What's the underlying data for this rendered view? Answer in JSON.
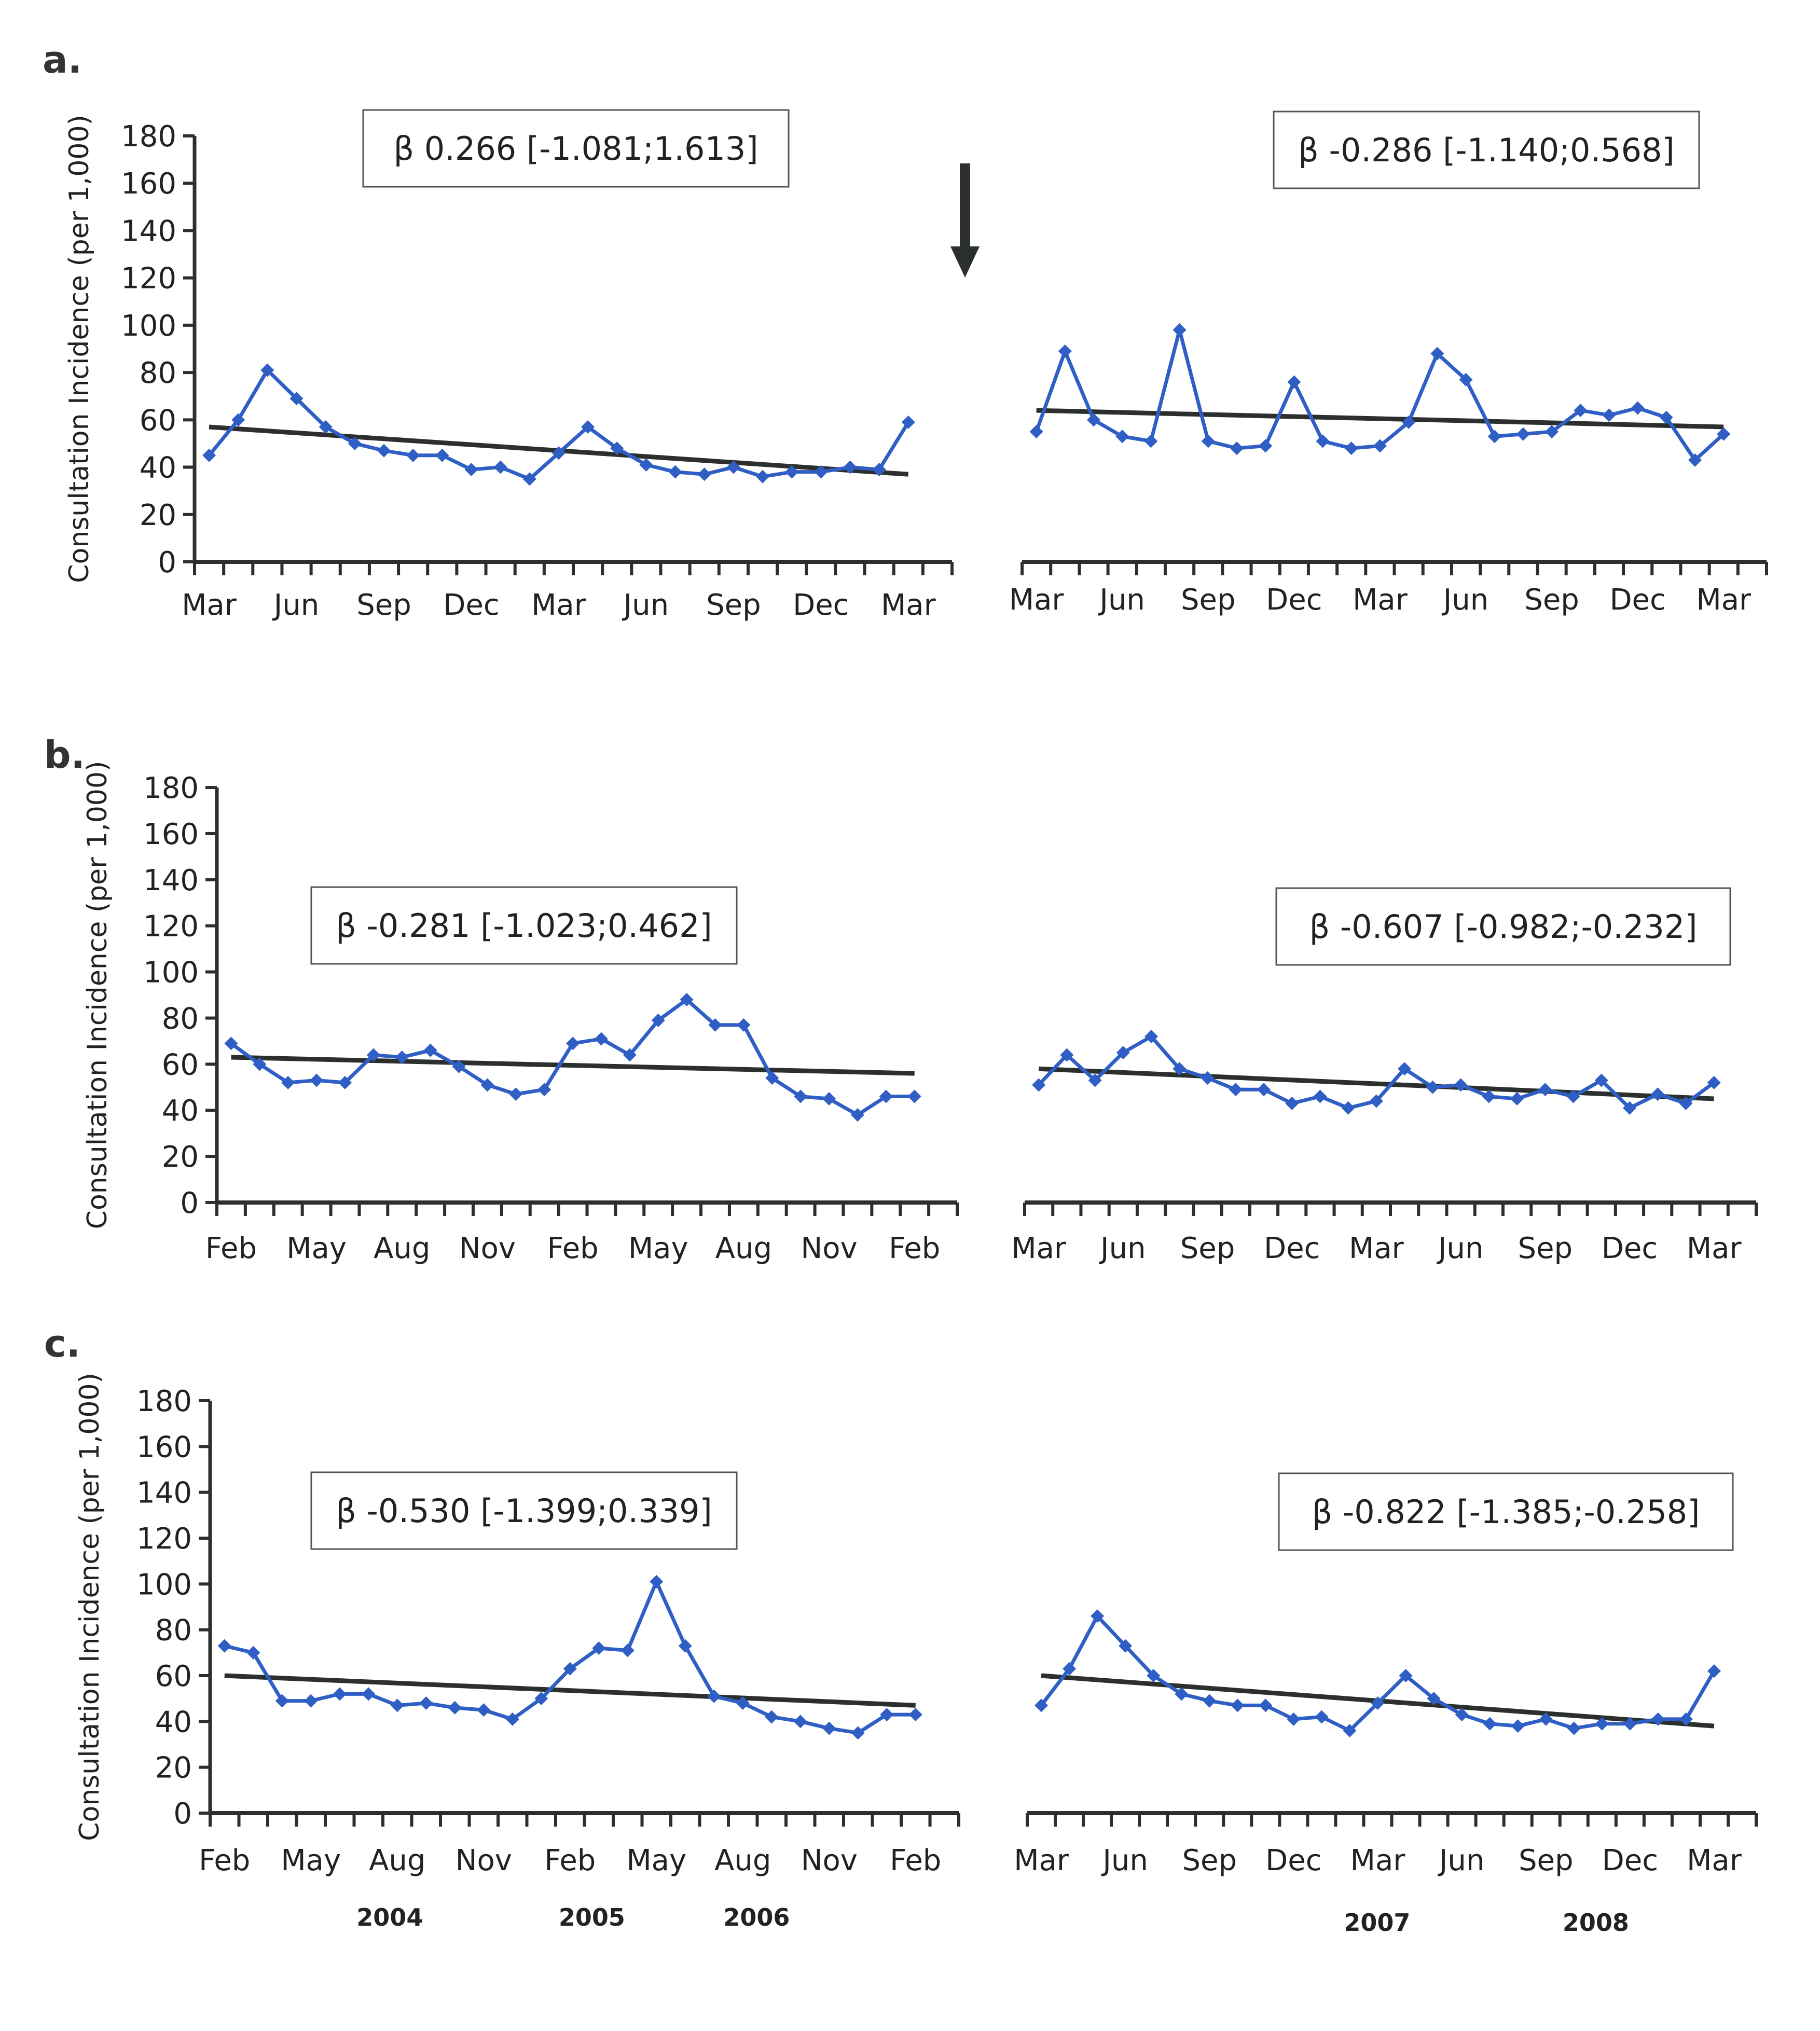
{
  "chart_data": [
    {
      "type": "line",
      "panel": "a.",
      "ylabel": "Consultation Incidence (per 1,000)",
      "ylim": [
        0,
        180
      ],
      "yticks": [
        "0",
        "20",
        "40",
        "60",
        "80",
        "100",
        "120",
        "140",
        "160",
        "180"
      ],
      "intervention_arrow": "between left and right segments",
      "segments": [
        {
          "side": "left",
          "annotation": "β 0.266 [-1.081;1.613]",
          "xtick_labels": [
            "Mar",
            "Jun",
            "Sep",
            "Dec",
            "Mar",
            "Jun",
            "Sep",
            "Dec",
            "Mar"
          ],
          "values": [
            45,
            60,
            81,
            69,
            57,
            50,
            47,
            45,
            45,
            39,
            40,
            35,
            46,
            57,
            48,
            41,
            38,
            37,
            40,
            36,
            38,
            38,
            40,
            39,
            59
          ],
          "trend": [
            57,
            37
          ]
        },
        {
          "side": "right",
          "annotation": "β -0.286 [-1.140;0.568]",
          "xtick_labels": [
            "Mar",
            "Jun",
            "Sep",
            "Dec",
            "Mar",
            "Jun",
            "Sep",
            "Dec",
            "Mar"
          ],
          "values": [
            55,
            89,
            60,
            53,
            51,
            98,
            51,
            48,
            49,
            76,
            51,
            48,
            49,
            59,
            88,
            77,
            53,
            54,
            55,
            64,
            62,
            65,
            61,
            43,
            54
          ],
          "trend": [
            64,
            57
          ]
        }
      ]
    },
    {
      "type": "line",
      "panel": "b.",
      "ylabel": "Consultation Incidence (per 1,000)",
      "ylim": [
        0,
        180
      ],
      "yticks": [
        "0",
        "20",
        "40",
        "60",
        "80",
        "100",
        "120",
        "140",
        "160",
        "180"
      ],
      "segments": [
        {
          "side": "left",
          "annotation": "β -0.281 [-1.023;0.462]",
          "xtick_labels": [
            "Feb",
            "May",
            "Aug",
            "Nov",
            "Feb",
            "May",
            "Aug",
            "Nov",
            "Feb"
          ],
          "values": [
            69,
            60,
            52,
            53,
            52,
            64,
            63,
            66,
            59,
            51,
            47,
            49,
            69,
            71,
            64,
            79,
            88,
            77,
            77,
            54,
            46,
            45,
            38,
            46,
            46
          ],
          "trend": [
            63,
            56
          ]
        },
        {
          "side": "right",
          "annotation": "β -0.607 [-0.982;-0.232]",
          "xtick_labels": [
            "Mar",
            "Jun",
            "Sep",
            "Dec",
            "Mar",
            "Jun",
            "Sep",
            "Dec",
            "Mar"
          ],
          "values": [
            51,
            64,
            53,
            65,
            72,
            58,
            54,
            49,
            49,
            43,
            46,
            41,
            44,
            58,
            50,
            51,
            46,
            45,
            49,
            46,
            53,
            41,
            47,
            43,
            52
          ],
          "trend": [
            58,
            45
          ]
        }
      ]
    },
    {
      "type": "line",
      "panel": "c.",
      "ylabel": "Consultation Incidence (per 1,000)",
      "ylim": [
        0,
        180
      ],
      "yticks": [
        "0",
        "20",
        "40",
        "60",
        "80",
        "100",
        "120",
        "140",
        "160",
        "180"
      ],
      "segments": [
        {
          "side": "left",
          "annotation": "β -0.530 [-1.399;0.339]",
          "xtick_labels": [
            "Feb",
            "May",
            "Aug",
            "Nov",
            "Feb",
            "May",
            "Aug",
            "Nov",
            "Feb"
          ],
          "year_labels": [
            "2004",
            "2005",
            "2006"
          ],
          "values": [
            73,
            70,
            49,
            49,
            52,
            52,
            47,
            48,
            46,
            45,
            41,
            50,
            63,
            72,
            71,
            101,
            73,
            51,
            48,
            42,
            40,
            37,
            35,
            43,
            43
          ],
          "trend": [
            60,
            47
          ]
        },
        {
          "side": "right",
          "annotation": "β -0.822 [-1.385;-0.258]",
          "xtick_labels": [
            "Mar",
            "Jun",
            "Sep",
            "Dec",
            "Mar",
            "Jun",
            "Sep",
            "Dec",
            "Mar"
          ],
          "year_labels": [
            "2007",
            "2008"
          ],
          "values": [
            47,
            63,
            86,
            73,
            60,
            52,
            49,
            47,
            47,
            41,
            42,
            36,
            48,
            60,
            50,
            43,
            39,
            38,
            41,
            37,
            39,
            39,
            41,
            41,
            62
          ],
          "trend": [
            60,
            38
          ]
        }
      ]
    }
  ]
}
